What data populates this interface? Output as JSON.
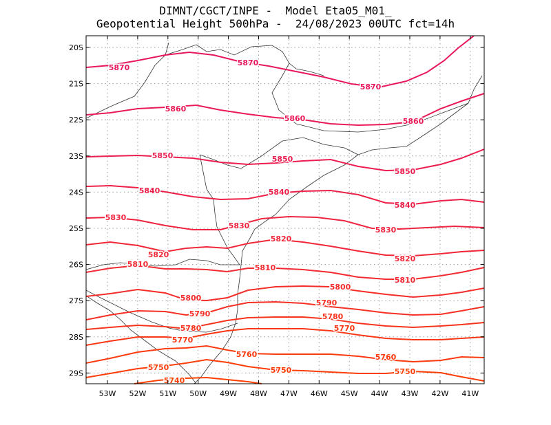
{
  "title": {
    "line1": "DIMNT/CGCT/INPE -  Model Eta05_M01_",
    "line2": "Geopotential Height 500hPa -  24/08/2023 00UTC fct=14h"
  },
  "axes": {
    "lat_ticks": [
      "20S",
      "21S",
      "22S",
      "23S",
      "24S",
      "25S",
      "26S",
      "27S",
      "28S",
      "29S"
    ],
    "lon_ticks": [
      "53W",
      "52W",
      "51W",
      "50W",
      "49W",
      "48W",
      "47W",
      "46W",
      "45W",
      "44W",
      "43W",
      "42W",
      "41W"
    ]
  },
  "colors": {
    "frame": "#000000",
    "grid": "#9a9a9a",
    "coast": "#333333",
    "contour_high": "#e8175d",
    "contour_low": "#ff4000"
  },
  "contours": [
    {
      "value": 5870,
      "label": "5870"
    },
    {
      "value": 5860,
      "label": "5860"
    },
    {
      "value": 5850,
      "label": "5850"
    },
    {
      "value": 5840,
      "label": "5840"
    },
    {
      "value": 5830,
      "label": "5830"
    },
    {
      "value": 5820,
      "label": "5820"
    },
    {
      "value": 5810,
      "label": "5810"
    },
    {
      "value": 5800,
      "label": "5800"
    },
    {
      "value": 5790,
      "label": "5790"
    },
    {
      "value": 5780,
      "label": "5780"
    },
    {
      "value": 5770,
      "label": "5770"
    },
    {
      "value": 5760,
      "label": "5760"
    },
    {
      "value": 5750,
      "label": "5750"
    },
    {
      "value": 5740,
      "label": "5740"
    }
  ]
}
